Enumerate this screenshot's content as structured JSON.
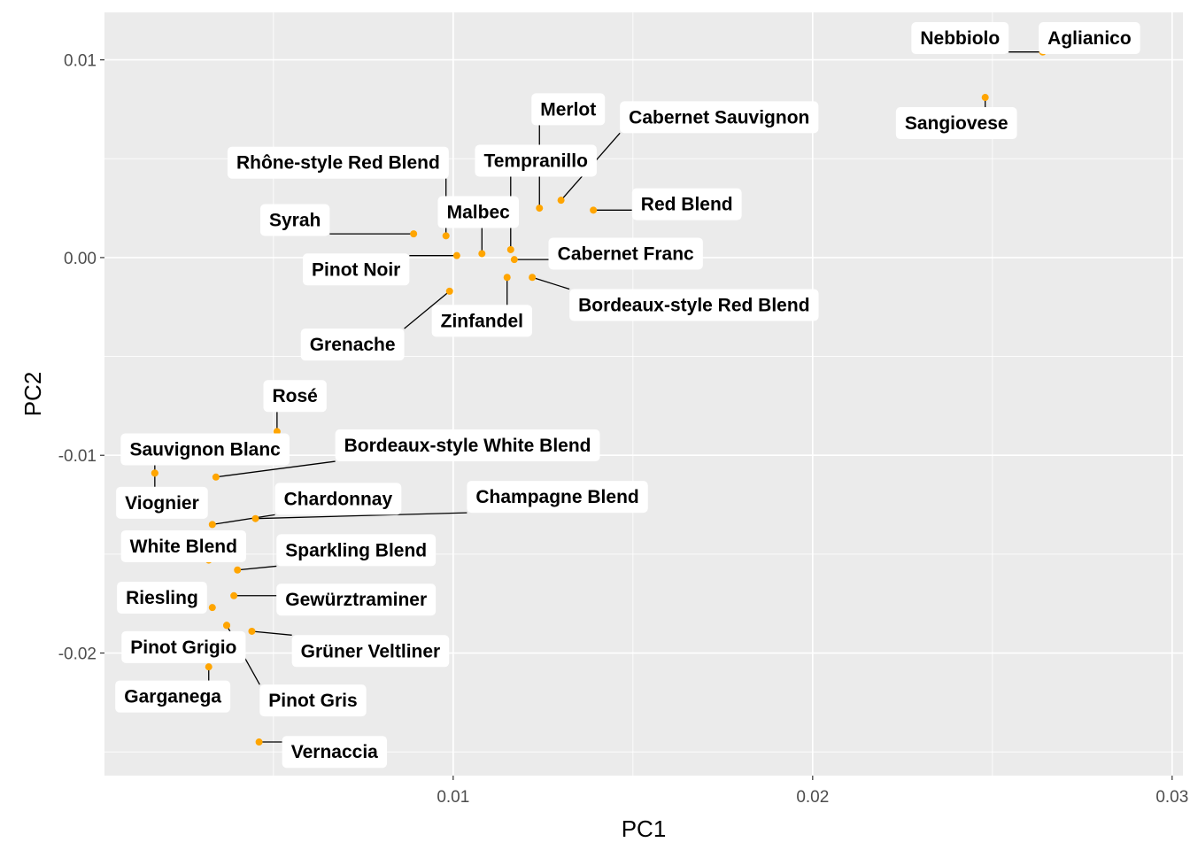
{
  "chart_data": {
    "type": "scatter",
    "title": "",
    "xlabel": "PC1",
    "ylabel": "PC2",
    "xlim": [
      0.0003,
      0.0303
    ],
    "ylim": [
      -0.0262,
      0.0124
    ],
    "x_ticks": [
      {
        "value": 0.01,
        "label": "0.01"
      },
      {
        "value": 0.02,
        "label": "0.02"
      },
      {
        "value": 0.03,
        "label": "0.03"
      }
    ],
    "y_ticks": [
      {
        "value": 0.01,
        "label": "0.01"
      },
      {
        "value": 0.0,
        "label": "0.00"
      },
      {
        "value": -0.01,
        "label": "-0.01"
      },
      {
        "value": -0.02,
        "label": "-0.02"
      }
    ],
    "point_color": "#ffa500",
    "panel_background": "#ebebeb",
    "grid": true,
    "legend": "none",
    "points": [
      {
        "name": "Nebbiolo",
        "x": 0.0264,
        "y": 0.0104,
        "lx": 0.0241,
        "ly": 0.0111
      },
      {
        "name": "Aglianico",
        "x": 0.0264,
        "y": 0.0104,
        "lx": 0.0277,
        "ly": 0.0111
      },
      {
        "name": "Sangiovese",
        "x": 0.0248,
        "y": 0.0081,
        "lx": 0.024,
        "ly": 0.0068
      },
      {
        "name": "Merlot",
        "x": 0.0124,
        "y": 0.0025,
        "lx": 0.0132,
        "ly": 0.0075
      },
      {
        "name": "Cabernet Sauvignon",
        "x": 0.013,
        "y": 0.0029,
        "lx": 0.0174,
        "ly": 0.0071
      },
      {
        "name": "Tempranillo",
        "x": 0.0116,
        "y": 0.0004,
        "lx": 0.0123,
        "ly": 0.0049
      },
      {
        "name": "Rhône-style Red Blend",
        "x": 0.0098,
        "y": 0.0011,
        "lx": 0.0068,
        "ly": 0.0048
      },
      {
        "name": "Red Blend",
        "x": 0.0139,
        "y": 0.0024,
        "lx": 0.0165,
        "ly": 0.0027
      },
      {
        "name": "Malbec",
        "x": 0.0108,
        "y": 0.0002,
        "lx": 0.0107,
        "ly": 0.0023
      },
      {
        "name": "Syrah",
        "x": 0.0089,
        "y": 0.0012,
        "lx": 0.0056,
        "ly": 0.0019
      },
      {
        "name": "Cabernet Franc",
        "x": 0.0117,
        "y": -0.0001,
        "lx": 0.0148,
        "ly": 0.0002
      },
      {
        "name": "Pinot Noir",
        "x": 0.0101,
        "y": 0.0001,
        "lx": 0.0073,
        "ly": -0.0006
      },
      {
        "name": "Bordeaux-style Red Blend",
        "x": 0.0122,
        "y": -0.001,
        "lx": 0.0167,
        "ly": -0.0024
      },
      {
        "name": "Zinfandel",
        "x": 0.0115,
        "y": -0.001,
        "lx": 0.0108,
        "ly": -0.0032
      },
      {
        "name": "Grenache",
        "x": 0.0099,
        "y": -0.0017,
        "lx": 0.0072,
        "ly": -0.0044
      },
      {
        "name": "Rosé",
        "x": 0.0051,
        "y": -0.0088,
        "lx": 0.0056,
        "ly": -0.007
      },
      {
        "name": "Sauvignon Blanc",
        "x": 0.0017,
        "y": -0.0109,
        "lx": 0.0031,
        "ly": -0.0097
      },
      {
        "name": "Bordeaux-style White Blend",
        "x": 0.0034,
        "y": -0.0111,
        "lx": 0.0104,
        "ly": -0.0095
      },
      {
        "name": "Viognier",
        "x": 0.0017,
        "y": -0.0109,
        "lx": 0.0019,
        "ly": -0.0124
      },
      {
        "name": "Chardonnay",
        "x": 0.0033,
        "y": -0.0135,
        "lx": 0.0068,
        "ly": -0.0122
      },
      {
        "name": "Champagne Blend",
        "x": 0.0045,
        "y": -0.0132,
        "lx": 0.0129,
        "ly": -0.0121
      },
      {
        "name": "White Blend",
        "x": 0.0032,
        "y": -0.0153,
        "lx": 0.0025,
        "ly": -0.0146
      },
      {
        "name": "Sparkling Blend",
        "x": 0.004,
        "y": -0.0158,
        "lx": 0.0073,
        "ly": -0.0148
      },
      {
        "name": "Riesling",
        "x": 0.0033,
        "y": -0.0177,
        "lx": 0.0019,
        "ly": -0.0172
      },
      {
        "name": "Gewürztraminer",
        "x": 0.0039,
        "y": -0.0171,
        "lx": 0.0073,
        "ly": -0.0173
      },
      {
        "name": "Pinot Grigio",
        "x": 0.0037,
        "y": -0.0186,
        "lx": 0.0025,
        "ly": -0.0197
      },
      {
        "name": "Grüner Veltliner",
        "x": 0.0044,
        "y": -0.0189,
        "lx": 0.0077,
        "ly": -0.0199
      },
      {
        "name": "Pinot Gris",
        "x": 0.0037,
        "y": -0.0186,
        "lx": 0.0061,
        "ly": -0.0224
      },
      {
        "name": "Garganega",
        "x": 0.0032,
        "y": -0.0207,
        "lx": 0.0022,
        "ly": -0.0222
      },
      {
        "name": "Vernaccia",
        "x": 0.0046,
        "y": -0.0245,
        "lx": 0.0067,
        "ly": -0.025
      }
    ]
  }
}
